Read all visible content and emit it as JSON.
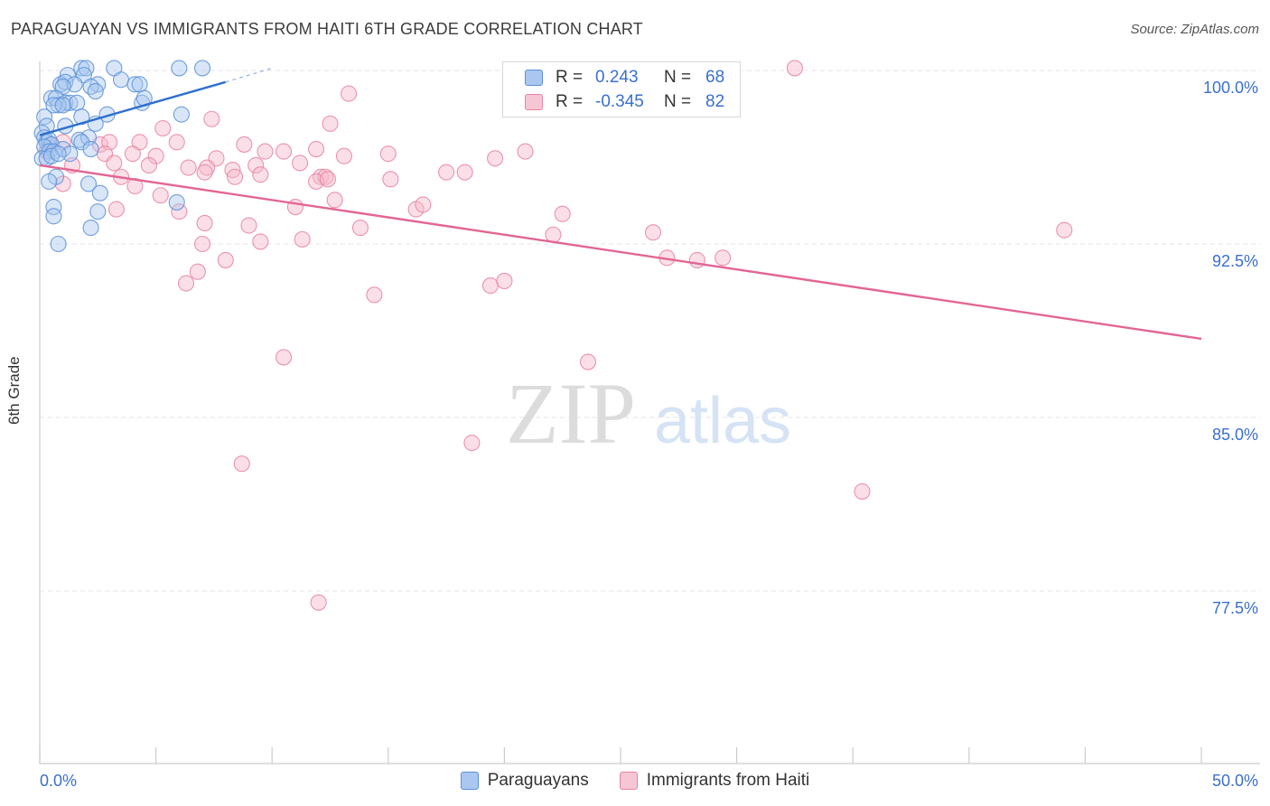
{
  "title": "PARAGUAYAN VS IMMIGRANTS FROM HAITI 6TH GRADE CORRELATION CHART",
  "source": "Source: ZipAtlas.com",
  "watermark": {
    "zip": "ZIP",
    "atlas": "atlas"
  },
  "legend": {
    "rows": [
      {
        "r_label": "R =",
        "r_value": "0.243",
        "n_label": "N =",
        "n_value": "68"
      },
      {
        "r_label": "R =",
        "r_value": "-0.345",
        "n_label": "N =",
        "n_value": "82"
      }
    ]
  },
  "bottom_legend": {
    "series1": "Paraguayans",
    "series2": "Immigrants from Haiti"
  },
  "colors": {
    "blue_fill": "#a9c7f0",
    "blue_stroke": "#5b8fd8",
    "blue_line": "#2f6fcf",
    "pink_fill": "#f6b9cc",
    "pink_stroke": "#e8829f",
    "pink_line": "#e36594",
    "tick_text": "#3a6fd0",
    "grid": "#e4e4e4"
  },
  "chart_data": {
    "type": "scatter",
    "title": "PARAGUAYAN VS IMMIGRANTS FROM HAITI 6TH GRADE CORRELATION CHART",
    "xlabel": "",
    "ylabel": "6th Grade",
    "xlim": [
      0,
      50
    ],
    "ylim": [
      70,
      100.9
    ],
    "x_tick_labels": [
      {
        "value": 0,
        "label": "0.0%"
      },
      {
        "value": 50,
        "label": "50.0%"
      }
    ],
    "y_tick_labels": [
      {
        "value": 100,
        "label": "100.0%"
      },
      {
        "value": 92.5,
        "label": "92.5%"
      },
      {
        "value": 85,
        "label": "85.0%"
      },
      {
        "value": 77.5,
        "label": "77.5%"
      }
    ],
    "series": [
      {
        "name": "Paraguayans",
        "color": "blue",
        "trend": {
          "x": [
            0,
            8.0
          ],
          "y": [
            97.2,
            99.5
          ],
          "dashed_ext_x": [
            8.0,
            10.0
          ],
          "dashed_ext_y": [
            99.5,
            100.1
          ]
        },
        "points": [
          [
            1.8,
            100.1
          ],
          [
            2.0,
            100.1
          ],
          [
            3.2,
            100.1
          ],
          [
            6.0,
            100.1
          ],
          [
            7.0,
            100.1
          ],
          [
            1.2,
            99.8
          ],
          [
            1.9,
            99.8
          ],
          [
            3.5,
            99.6
          ],
          [
            0.9,
            99.4
          ],
          [
            1.1,
            99.5
          ],
          [
            1.5,
            99.4
          ],
          [
            2.5,
            99.4
          ],
          [
            4.1,
            99.4
          ],
          [
            4.3,
            99.4
          ],
          [
            1.0,
            99.3
          ],
          [
            2.2,
            99.3
          ],
          [
            2.4,
            99.1
          ],
          [
            0.5,
            98.8
          ],
          [
            0.7,
            98.8
          ],
          [
            1.1,
            98.6
          ],
          [
            1.3,
            98.6
          ],
          [
            1.6,
            98.6
          ],
          [
            4.4,
            98.6
          ],
          [
            4.5,
            98.8
          ],
          [
            0.8,
            98.5
          ],
          [
            0.6,
            98.5
          ],
          [
            1.0,
            98.5
          ],
          [
            0.2,
            98.0
          ],
          [
            1.8,
            98.0
          ],
          [
            2.9,
            98.1
          ],
          [
            6.1,
            98.1
          ],
          [
            0.3,
            97.6
          ],
          [
            1.1,
            97.6
          ],
          [
            2.4,
            97.7
          ],
          [
            0.1,
            97.3
          ],
          [
            0.2,
            97.1
          ],
          [
            0.3,
            96.9
          ],
          [
            0.4,
            97.0
          ],
          [
            0.5,
            96.8
          ],
          [
            1.7,
            97.0
          ],
          [
            2.1,
            97.1
          ],
          [
            1.8,
            96.9
          ],
          [
            0.2,
            96.7
          ],
          [
            0.4,
            96.5
          ],
          [
            0.6,
            96.5
          ],
          [
            1.0,
            96.6
          ],
          [
            1.3,
            96.4
          ],
          [
            2.2,
            96.6
          ],
          [
            0.1,
            96.2
          ],
          [
            0.3,
            96.2
          ],
          [
            0.5,
            96.3
          ],
          [
            0.8,
            96.4
          ],
          [
            0.7,
            95.4
          ],
          [
            0.4,
            95.2
          ],
          [
            2.1,
            95.1
          ],
          [
            2.6,
            94.7
          ],
          [
            5.9,
            94.3
          ],
          [
            0.6,
            94.1
          ],
          [
            2.5,
            93.9
          ],
          [
            0.6,
            93.7
          ],
          [
            2.2,
            93.2
          ],
          [
            0.8,
            92.5
          ]
        ]
      },
      {
        "name": "Immigrants from Haiti",
        "color": "pink",
        "trend": {
          "x": [
            0,
            50
          ],
          "y": [
            95.9,
            88.4
          ]
        },
        "points": [
          [
            32.5,
            100.1
          ],
          [
            13.3,
            99.0
          ],
          [
            7.4,
            97.9
          ],
          [
            12.5,
            97.7
          ],
          [
            5.3,
            97.5
          ],
          [
            0.5,
            96.8
          ],
          [
            1.0,
            96.9
          ],
          [
            2.6,
            96.8
          ],
          [
            3.0,
            96.9
          ],
          [
            4.3,
            96.9
          ],
          [
            5.9,
            96.9
          ],
          [
            8.8,
            96.8
          ],
          [
            0.3,
            96.5
          ],
          [
            2.8,
            96.4
          ],
          [
            4.0,
            96.4
          ],
          [
            5.0,
            96.3
          ],
          [
            7.6,
            96.2
          ],
          [
            9.7,
            96.5
          ],
          [
            10.5,
            96.5
          ],
          [
            11.9,
            96.6
          ],
          [
            13.1,
            96.3
          ],
          [
            15.0,
            96.4
          ],
          [
            19.6,
            96.2
          ],
          [
            20.9,
            96.5
          ],
          [
            1.4,
            95.9
          ],
          [
            3.2,
            96.0
          ],
          [
            4.7,
            95.9
          ],
          [
            6.4,
            95.8
          ],
          [
            7.2,
            95.8
          ],
          [
            8.3,
            95.7
          ],
          [
            9.3,
            95.9
          ],
          [
            11.2,
            96.0
          ],
          [
            3.5,
            95.4
          ],
          [
            7.1,
            95.6
          ],
          [
            8.4,
            95.4
          ],
          [
            9.5,
            95.5
          ],
          [
            12.1,
            95.4
          ],
          [
            12.3,
            95.4
          ],
          [
            15.1,
            95.3
          ],
          [
            17.5,
            95.6
          ],
          [
            18.3,
            95.6
          ],
          [
            1.0,
            95.1
          ],
          [
            4.1,
            95.0
          ],
          [
            11.9,
            95.2
          ],
          [
            12.4,
            95.3
          ],
          [
            5.2,
            94.6
          ],
          [
            12.7,
            94.4
          ],
          [
            3.3,
            94.0
          ],
          [
            11.0,
            94.1
          ],
          [
            16.2,
            94.0
          ],
          [
            16.5,
            94.2
          ],
          [
            22.5,
            93.8
          ],
          [
            6.0,
            93.9
          ],
          [
            7.1,
            93.4
          ],
          [
            9.0,
            93.3
          ],
          [
            13.8,
            93.2
          ],
          [
            26.4,
            93.0
          ],
          [
            22.1,
            92.9
          ],
          [
            44.1,
            93.1
          ],
          [
            7.0,
            92.5
          ],
          [
            9.5,
            92.6
          ],
          [
            11.3,
            92.7
          ],
          [
            8.0,
            91.8
          ],
          [
            27.0,
            91.9
          ],
          [
            28.3,
            91.8
          ],
          [
            29.4,
            91.9
          ],
          [
            6.8,
            91.3
          ],
          [
            6.3,
            90.8
          ],
          [
            19.4,
            90.7
          ],
          [
            20.0,
            90.9
          ],
          [
            14.4,
            90.3
          ],
          [
            10.5,
            87.6
          ],
          [
            23.6,
            87.4
          ],
          [
            18.6,
            83.9
          ],
          [
            8.7,
            83.0
          ],
          [
            35.4,
            81.8
          ],
          [
            12.0,
            77.0
          ]
        ]
      }
    ]
  }
}
